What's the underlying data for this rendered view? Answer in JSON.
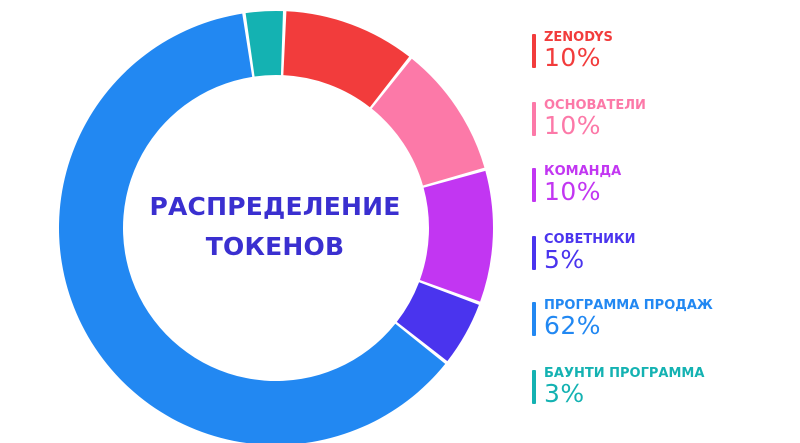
{
  "chart_data": {
    "type": "pie",
    "title": "РАСПРЕДЕЛЕНИЕ ТОКЕНОВ",
    "title_lines": [
      "РАСПРЕДЕЛЕНИЕ",
      "ТОКЕНОВ"
    ],
    "categories": [
      "ZENODYS",
      "ОСНОВАТЕЛИ",
      "КОМАНДА",
      "СОВЕТНИКИ",
      "ПРОГРАММА ПРОДАЖ",
      "БАУНТИ ПРОГРАММА"
    ],
    "values": [
      10,
      10,
      10,
      5,
      62,
      3
    ],
    "labels": [
      "10%",
      "10%",
      "10%",
      "5%",
      "62%",
      "3%"
    ],
    "colors": [
      "#f23c3c",
      "#fc79a8",
      "#c236f2",
      "#4a34ee",
      "#2288f2",
      "#14b2b2"
    ],
    "donut": true,
    "legend_position": "right"
  }
}
